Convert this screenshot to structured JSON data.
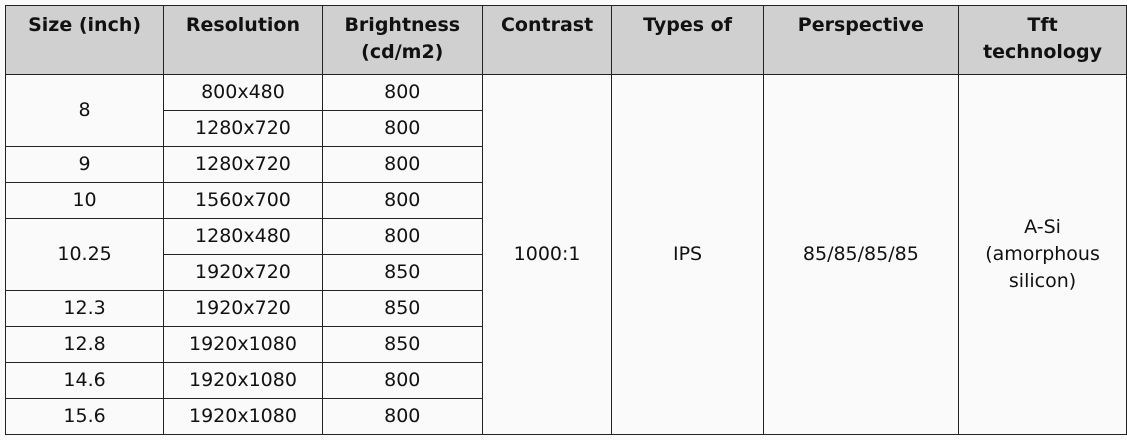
{
  "headers": [
    "Size (inch)",
    "Resolution",
    "Brightness (cd/m2)",
    "Contrast",
    "Types of",
    "Perspective",
    "Tft technology"
  ],
  "groups": [
    {
      "size": "8",
      "rows": [
        {
          "resolution": "800x480",
          "brightness": "800"
        },
        {
          "resolution": "1280x720",
          "brightness": "800"
        }
      ]
    },
    {
      "size": "9",
      "rows": [
        {
          "resolution": "1280x720",
          "brightness": "800"
        }
      ]
    },
    {
      "size": "10",
      "rows": [
        {
          "resolution": "1560x700",
          "brightness": "800"
        }
      ]
    },
    {
      "size": "10.25",
      "rows": [
        {
          "resolution": "1280x480",
          "brightness": "800"
        },
        {
          "resolution": "1920x720",
          "brightness": "850"
        }
      ]
    },
    {
      "size": "12.3",
      "rows": [
        {
          "resolution": "1920x720",
          "brightness": "850"
        }
      ]
    },
    {
      "size": "12.8",
      "rows": [
        {
          "resolution": "1920x1080",
          "brightness": "850"
        }
      ]
    },
    {
      "size": "14.6",
      "rows": [
        {
          "resolution": "1920x1080",
          "brightness": "800"
        }
      ]
    },
    {
      "size": "15.6",
      "rows": [
        {
          "resolution": "1920x1080",
          "brightness": "800"
        }
      ]
    }
  ],
  "shared": {
    "contrast": "1000:1",
    "type": "IPS",
    "perspective": "85/85/85/85",
    "tft": "A-Si (amorphous silicon)"
  },
  "colors": {
    "header_bg": "#d1d0d1",
    "body_bg": "#fafafa",
    "border": "#222222"
  }
}
